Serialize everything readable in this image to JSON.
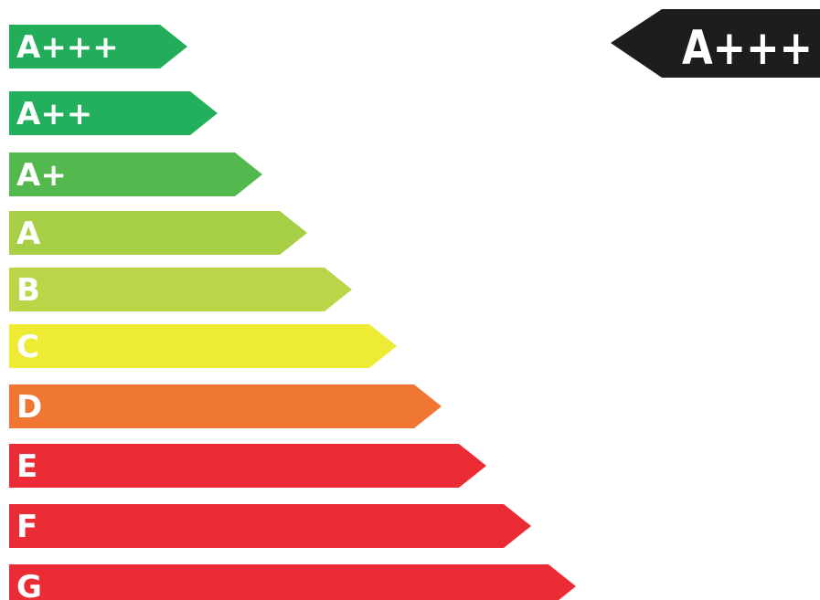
{
  "energy_label": {
    "classes": [
      {
        "label": "A+++",
        "color": "#21ad5a"
      },
      {
        "label": "A++",
        "color": "#22b05c"
      },
      {
        "label": "A+",
        "color": "#53b94f"
      },
      {
        "label": "A",
        "color": "#a6cf45"
      },
      {
        "label": "B",
        "color": "#b8d648"
      },
      {
        "label": "C",
        "color": "#eeeb35"
      },
      {
        "label": "D",
        "color": "#ef7633"
      },
      {
        "label": "E",
        "color": "#ec2c35"
      },
      {
        "label": "F",
        "color": "#ec2c35"
      },
      {
        "label": "G",
        "color": "#ec2c35"
      }
    ],
    "rating": {
      "label": "A+++",
      "color": "#1d1d1d"
    }
  }
}
